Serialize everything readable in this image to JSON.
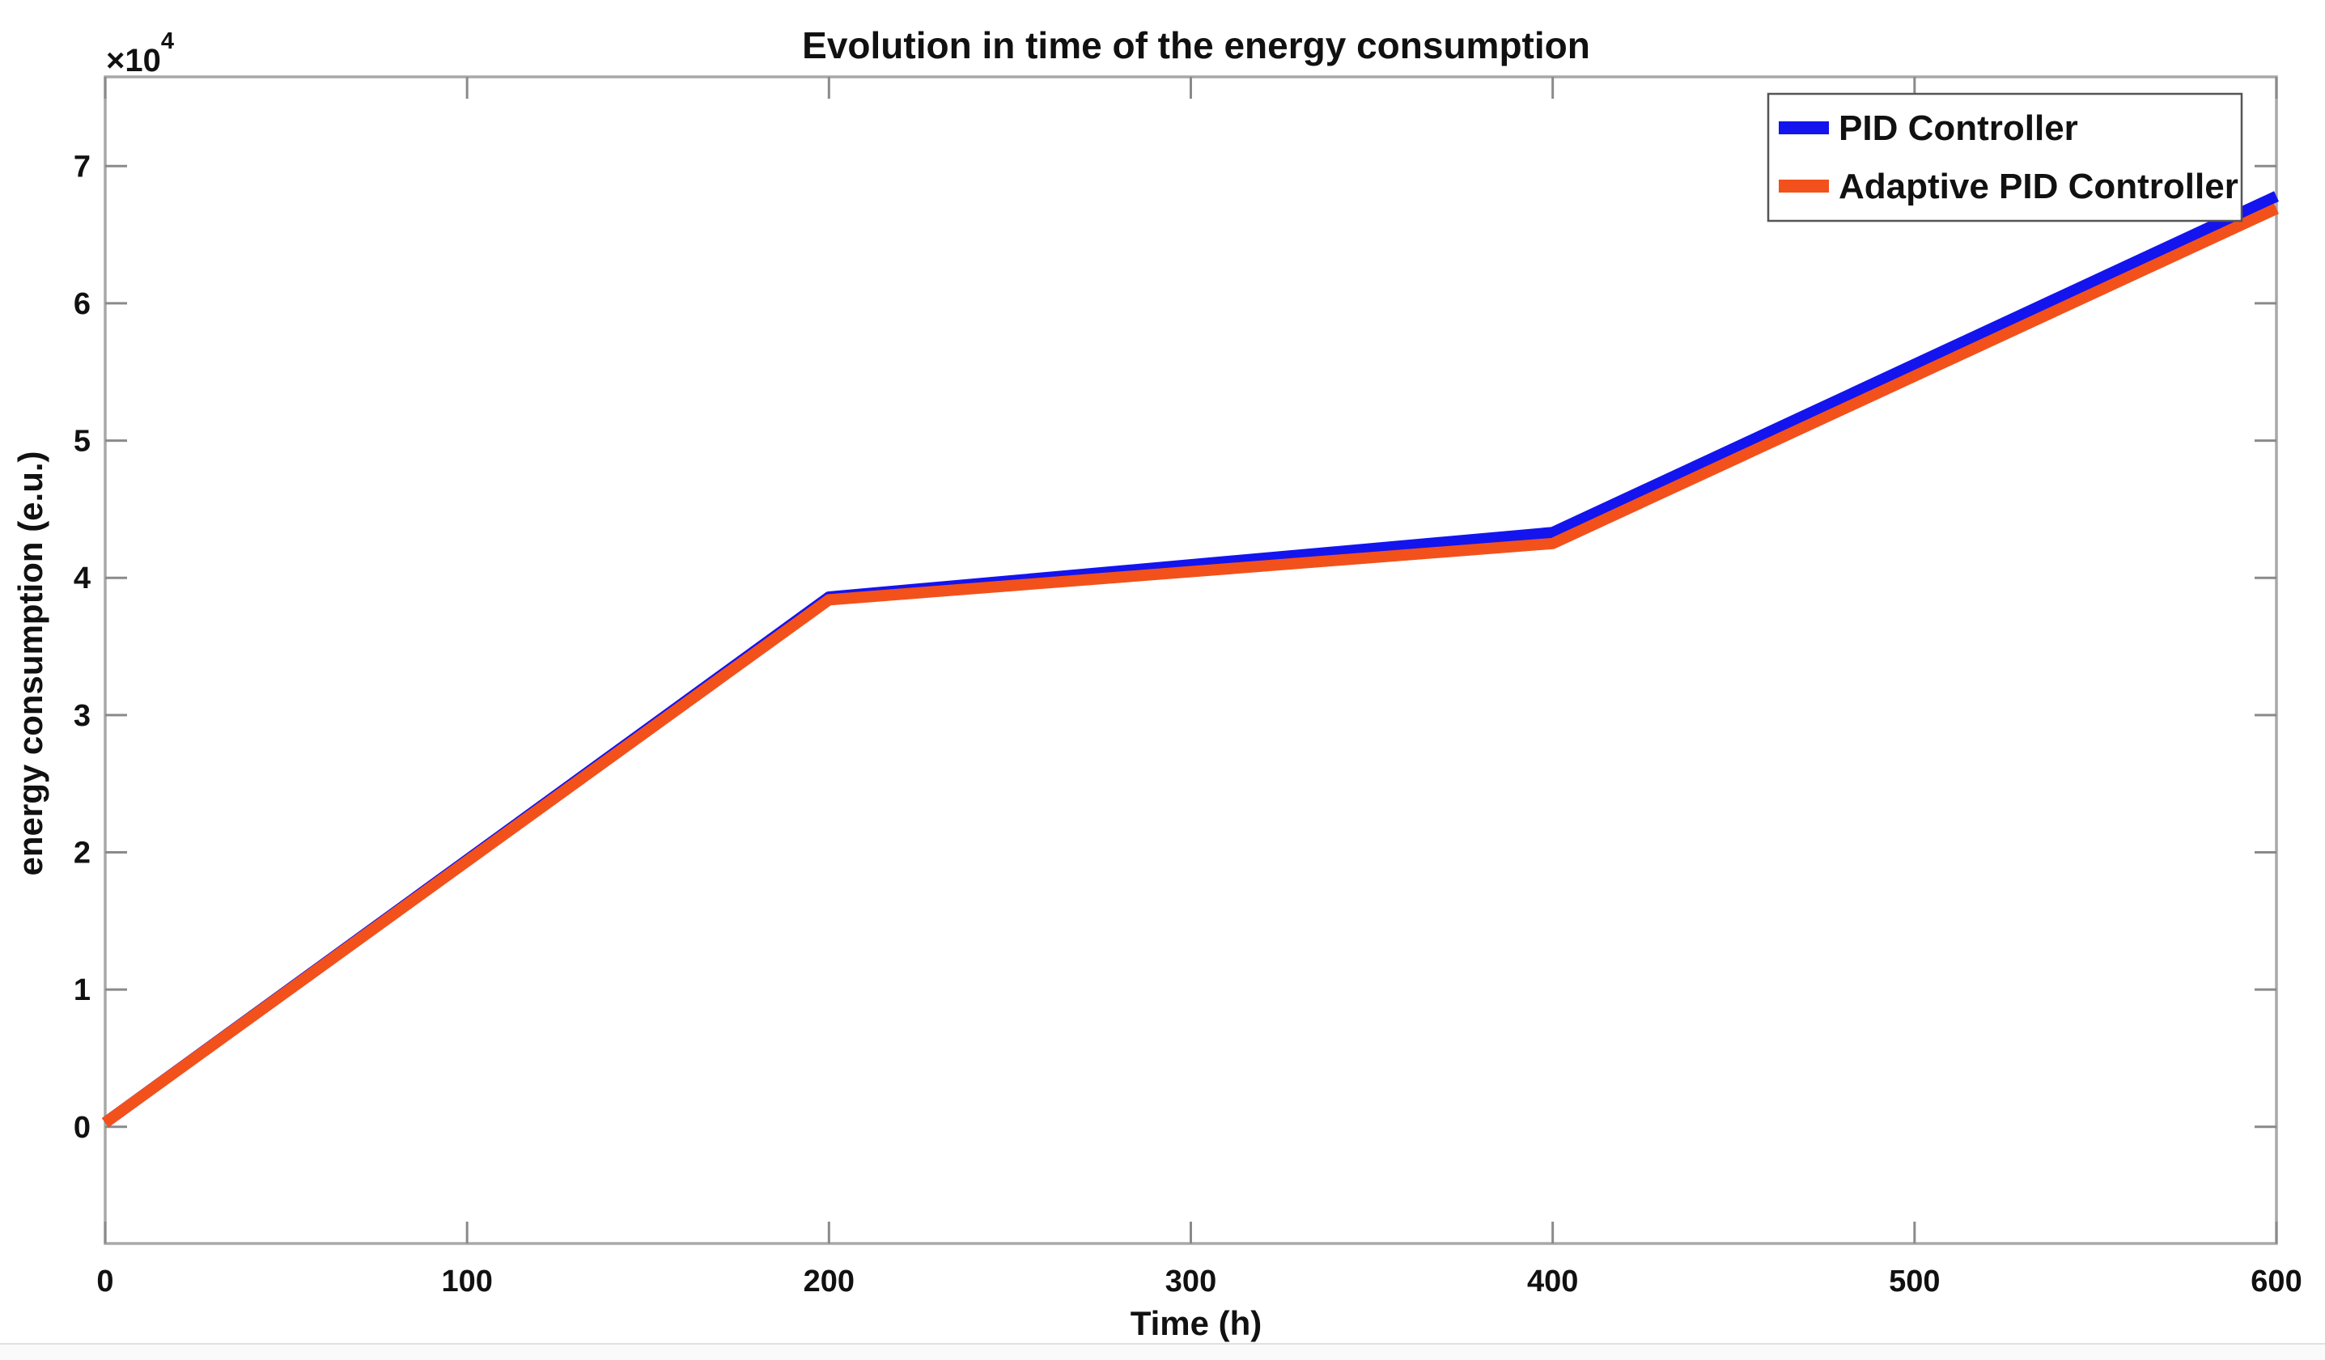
{
  "window": {
    "background": "#ffffff",
    "footer_strip_color": "#fafafa",
    "footer_line_color": "#e0e0e0"
  },
  "colors": {
    "axis_box": "#a8a8a8",
    "tick": "#8a8a8a",
    "text": "#111111",
    "legend_border": "#555555",
    "legend_background": "#ffffff",
    "series_blue": "#1414ee",
    "series_orange": "#f3511b"
  },
  "chart_data": {
    "type": "line",
    "title": "Evolution in time of the energy consumption",
    "xlabel": "Time (h)",
    "ylabel": "energy consumption (e.u.)",
    "y_axis_multiplier": {
      "base": "×10",
      "exponent": "4"
    },
    "x": [
      0,
      200,
      400,
      600
    ],
    "series": [
      {
        "name": "PID Controller",
        "color": "#1414ee",
        "values": [
          300,
          38600,
          43300,
          67800
        ]
      },
      {
        "name": "Adaptive PID Controller",
        "color": "#f3511b",
        "values": [
          300,
          38400,
          42500,
          66900
        ]
      }
    ],
    "xlim": [
      0,
      600
    ],
    "ylim": [
      -8500,
      76500
    ],
    "xticks": {
      "values": [
        0,
        100,
        200,
        300,
        400,
        500,
        600
      ],
      "labels": [
        "0",
        "100",
        "200",
        "300",
        "400",
        "500",
        "600"
      ]
    },
    "yticks": {
      "values": [
        0,
        10000,
        20000,
        30000,
        40000,
        50000,
        60000,
        70000
      ],
      "labels": [
        "0",
        "1",
        "2",
        "3",
        "4",
        "5",
        "6",
        "7"
      ]
    },
    "grid": "off",
    "legend_position": "top-right",
    "line_width": 14
  }
}
